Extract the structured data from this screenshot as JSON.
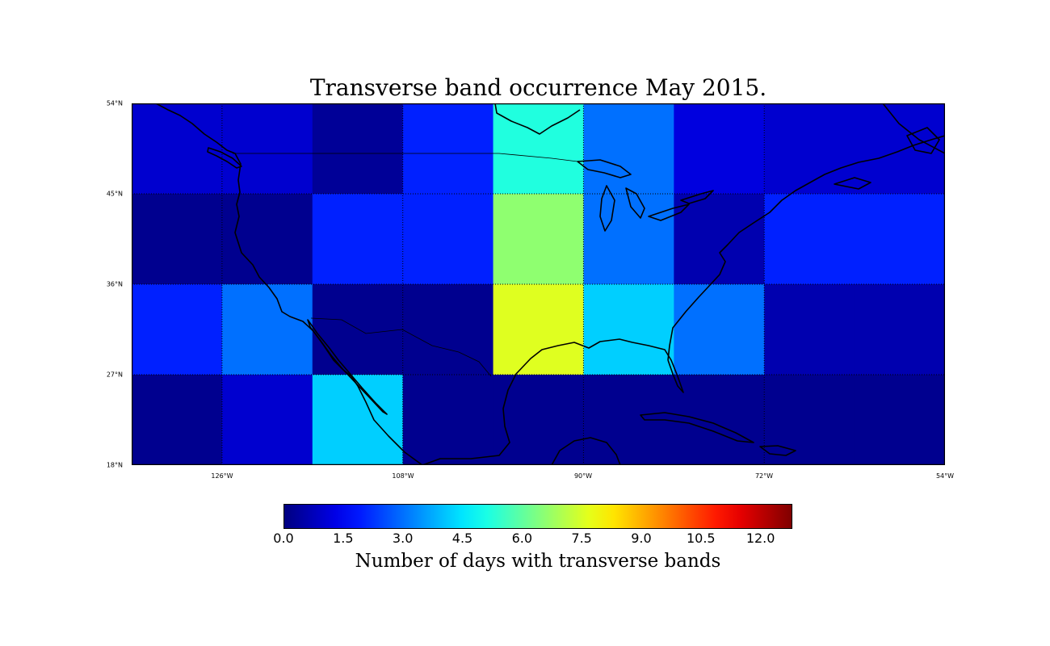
{
  "title": "Transverse band occurrence May 2015.",
  "map": {
    "projection": "equirectangular",
    "lon_range": [
      -135,
      -54
    ],
    "lat_range": [
      18,
      54
    ],
    "lat_ticks": [
      "54°N",
      "45°N",
      "36°N",
      "27°N",
      "18°N"
    ],
    "lon_ticks": [
      "126°W",
      "108°W",
      "90°W",
      "72°W",
      "54°W"
    ],
    "grid_cells": {
      "lat_bands": [
        "45–54°N",
        "36–45°N",
        "27–36°N",
        "18–27°N"
      ],
      "lon_bands": [
        "135–126°W",
        "126–117°W",
        "117–108°W",
        "108–99°W",
        "99–90°W",
        "90–81°W",
        "81–72°W",
        "72–63°W",
        "63–54°W"
      ],
      "values": [
        [
          1.0,
          1.0,
          0.3,
          2.0,
          5.2,
          3.0,
          1.2,
          1.0,
          1.0
        ],
        [
          0.2,
          0.2,
          2.0,
          2.0,
          6.6,
          3.0,
          0.6,
          2.0,
          2.0
        ],
        [
          2.0,
          3.0,
          0.2,
          0.2,
          7.6,
          4.2,
          3.0,
          0.6,
          0.6
        ],
        [
          0.2,
          1.0,
          4.2,
          0.2,
          0.2,
          0.2,
          0.2,
          0.2,
          0.2
        ]
      ]
    },
    "coastline_color": "#000000"
  },
  "colorbar": {
    "colormap": "jet",
    "min": 0,
    "max": 12.8,
    "ticks": [
      "0.0",
      "1.5",
      "3.0",
      "4.5",
      "6.0",
      "7.5",
      "9.0",
      "10.5",
      "12.0"
    ],
    "label": "Number of days with transverse bands"
  }
}
